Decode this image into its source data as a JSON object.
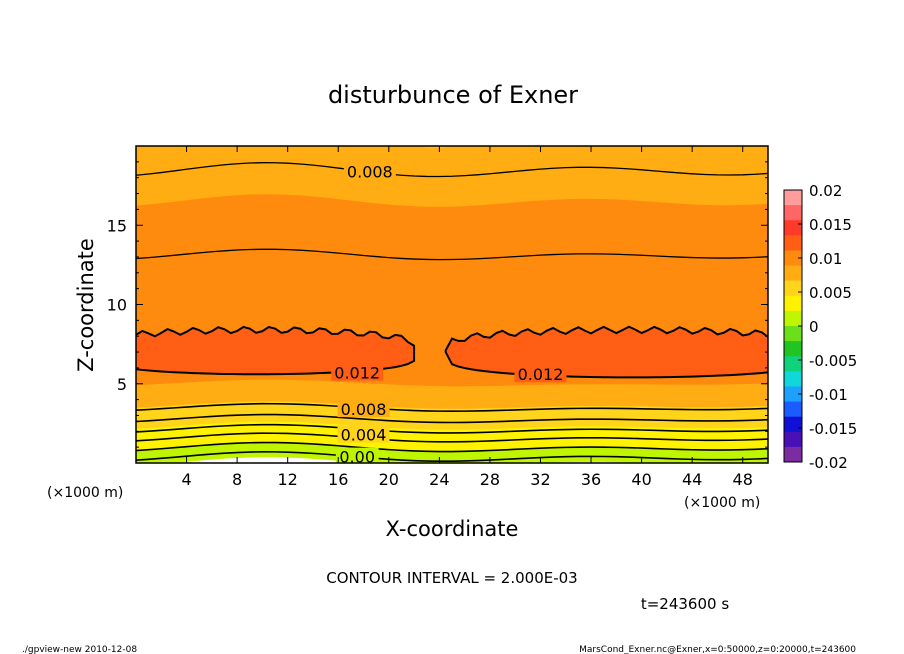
{
  "chart_data": {
    "type": "contour",
    "title": "disturbunce of Exner",
    "xlabel": "X-coordinate",
    "ylabel": "Z-coordinate",
    "x_unit": "(×1000 m)",
    "y_unit": "(×1000 m)",
    "xlim": [
      0,
      50
    ],
    "ylim": [
      0,
      20
    ],
    "x_ticks": [
      4,
      8,
      12,
      16,
      20,
      24,
      28,
      32,
      36,
      40,
      44,
      48
    ],
    "y_ticks": [
      5,
      10,
      15
    ],
    "contour_interval_text": "CONTOUR INTERVAL = 2.000E-03",
    "time_text": "t=243600 s",
    "contour_labels": [
      {
        "text": "0.008",
        "x": 18.5,
        "z": 18.4
      },
      {
        "text": "0.012",
        "x": 17.5,
        "z": 5.7
      },
      {
        "text": "0.012",
        "x": 32,
        "z": 5.6
      },
      {
        "text": "0.008",
        "x": 18,
        "z": 3.4
      },
      {
        "text": "0.004",
        "x": 18,
        "z": 1.8
      },
      {
        "text": "0.00",
        "x": 17.5,
        "z": 0.4
      }
    ],
    "colorbar": {
      "ticks": [
        "0.02",
        "0.015",
        "0.01",
        "0.005",
        "0",
        "-0.005",
        "-0.01",
        "-0.015",
        "-0.02"
      ],
      "range": [
        -0.02,
        0.02
      ],
      "colors": [
        "#ff9d9d",
        "#ff6666",
        "#ff3a2a",
        "#ff5e14",
        "#ff8b0e",
        "#ffad12",
        "#ffd41a",
        "#fff200",
        "#bff500",
        "#6be01a",
        "#21c421",
        "#10d27c",
        "#11d8d8",
        "#1ea0ff",
        "#1a5cff",
        "#1010d6",
        "#4a10b8",
        "#7a2ca0"
      ]
    },
    "field_levels": [
      {
        "z": 0.0,
        "value": 0.0005
      },
      {
        "z": 0.5,
        "value": 0.0015
      },
      {
        "z": 1.0,
        "value": 0.0025
      },
      {
        "z": 1.6,
        "value": 0.0035
      },
      {
        "z": 2.3,
        "value": 0.0045
      },
      {
        "z": 3.0,
        "value": 0.0058
      },
      {
        "z": 3.6,
        "value": 0.0072
      },
      {
        "z": 4.3,
        "value": 0.0088
      },
      {
        "z": 5.0,
        "value": 0.0105
      },
      {
        "z": 9.5,
        "value": 0.0108
      },
      {
        "z": 13.2,
        "value": 0.0093
      },
      {
        "z": 16.5,
        "value": 0.0083
      },
      {
        "z": 18.3,
        "value": 0.0079
      },
      {
        "z": 20.0,
        "value": 0.0077
      }
    ],
    "core_value": 0.0125
  },
  "footer": {
    "left": "./gpview-new   2010-12-08",
    "right": "MarsCond_Exner.nc@Exner,x=0:50000,z=0:20000,t=243600"
  }
}
